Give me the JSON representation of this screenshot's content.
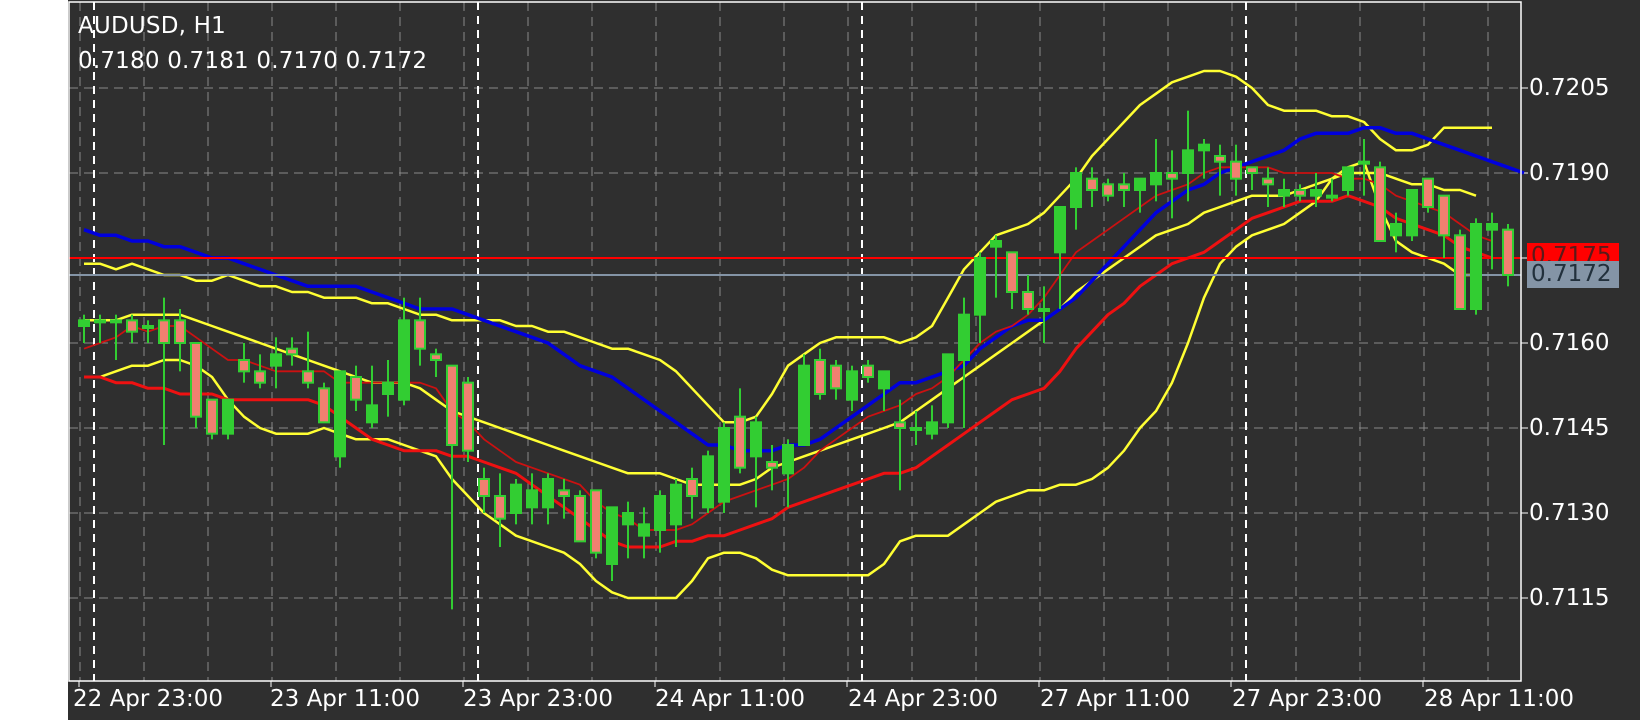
{
  "header": {
    "symbol_timeframe": "AUDUSD, H1",
    "ohlc": "0.7180 0.7181 0.7170 0.7172"
  },
  "price_tags": {
    "ask_line": "0.7175",
    "bid_line": "0.7172"
  },
  "colors": {
    "background": "#2f2f2f",
    "grid": "#8a8a8a",
    "axis": "#ffffff",
    "bull_candle": "#32cd32",
    "bear_candle_body": "#f08070",
    "bollinger": "#ffff33",
    "ma_blue": "#0000dd",
    "ma_red": "#ee1111",
    "ask_line": "#ff0000",
    "bid_line": "#8494a6"
  },
  "chart_data": {
    "type": "candlestick",
    "title": "AUDUSD, H1",
    "xlabel": "",
    "ylabel": "",
    "ylim": [
      0.71,
      0.7214
    ],
    "grid": true,
    "y_ticks": [
      "0.7205",
      "0.7190",
      "0.7160",
      "0.7145",
      "0.7130",
      "0.7115"
    ],
    "x_ticks": [
      "22 Apr 23:00",
      "23 Apr 11:00",
      "23 Apr 23:00",
      "24 Apr 11:00",
      "24 Apr 23:00",
      "27 Apr 11:00",
      "27 Apr 23:00",
      "28 Apr 11:00"
    ],
    "last_ohlc": {
      "open": 0.718,
      "high": 0.7181,
      "low": 0.717,
      "close": 0.7172
    },
    "horizontal_lines": [
      {
        "name": "ask",
        "value": 0.7175,
        "color": "#ff0000"
      },
      {
        "name": "bid",
        "value": 0.7172,
        "color": "#8494a6"
      }
    ],
    "candles": [
      [
        0.7163,
        0.7165,
        0.716,
        0.7164
      ],
      [
        0.7164,
        0.7165,
        0.716,
        0.7164
      ],
      [
        0.7164,
        0.7165,
        0.7157,
        0.7164
      ],
      [
        0.7164,
        0.7165,
        0.716,
        0.7162
      ],
      [
        0.7163,
        0.7164,
        0.716,
        0.7163
      ],
      [
        0.7164,
        0.7168,
        0.7142,
        0.716
      ],
      [
        0.7164,
        0.7166,
        0.7155,
        0.716
      ],
      [
        0.716,
        0.716,
        0.7145,
        0.7147
      ],
      [
        0.715,
        0.715,
        0.7143,
        0.7144
      ],
      [
        0.7144,
        0.715,
        0.7143,
        0.715
      ],
      [
        0.7157,
        0.716,
        0.7153,
        0.7155
      ],
      [
        0.7155,
        0.7158,
        0.7152,
        0.7153
      ],
      [
        0.7156,
        0.7161,
        0.7152,
        0.7158
      ],
      [
        0.7159,
        0.7161,
        0.7156,
        0.7158
      ],
      [
        0.7155,
        0.7162,
        0.7152,
        0.7153
      ],
      [
        0.7152,
        0.7153,
        0.7146,
        0.7146
      ],
      [
        0.714,
        0.7155,
        0.7138,
        0.7155
      ],
      [
        0.7154,
        0.7156,
        0.7148,
        0.715
      ],
      [
        0.7146,
        0.7156,
        0.7145,
        0.7149
      ],
      [
        0.7151,
        0.7157,
        0.7147,
        0.7153
      ],
      [
        0.715,
        0.7168,
        0.7149,
        0.7164
      ],
      [
        0.7164,
        0.7168,
        0.7156,
        0.7159
      ],
      [
        0.7158,
        0.7159,
        0.7154,
        0.7157
      ],
      [
        0.7156,
        0.7156,
        0.7113,
        0.7142
      ],
      [
        0.7153,
        0.7154,
        0.7139,
        0.7141
      ],
      [
        0.7136,
        0.7138,
        0.713,
        0.7133
      ],
      [
        0.7133,
        0.7137,
        0.7124,
        0.7129
      ],
      [
        0.713,
        0.7136,
        0.7128,
        0.7135
      ],
      [
        0.7131,
        0.7137,
        0.7128,
        0.7134
      ],
      [
        0.7131,
        0.7137,
        0.7128,
        0.7136
      ],
      [
        0.7134,
        0.7136,
        0.7129,
        0.7133
      ],
      [
        0.7133,
        0.7134,
        0.7125,
        0.7125
      ],
      [
        0.7134,
        0.7134,
        0.7122,
        0.7123
      ],
      [
        0.7121,
        0.7131,
        0.7118,
        0.7131
      ],
      [
        0.7128,
        0.7132,
        0.7122,
        0.713
      ],
      [
        0.7126,
        0.7131,
        0.7122,
        0.7128
      ],
      [
        0.7127,
        0.7134,
        0.7123,
        0.7133
      ],
      [
        0.7128,
        0.7136,
        0.7124,
        0.7135
      ],
      [
        0.7136,
        0.7138,
        0.7129,
        0.7133
      ],
      [
        0.7131,
        0.7141,
        0.713,
        0.714
      ],
      [
        0.7132,
        0.7146,
        0.713,
        0.7145
      ],
      [
        0.7147,
        0.7152,
        0.7137,
        0.7138
      ],
      [
        0.714,
        0.7147,
        0.7131,
        0.7146
      ],
      [
        0.7139,
        0.7142,
        0.7134,
        0.7138
      ],
      [
        0.7137,
        0.7143,
        0.7131,
        0.7142
      ],
      [
        0.7142,
        0.7158,
        0.7142,
        0.7156
      ],
      [
        0.7157,
        0.7159,
        0.715,
        0.7151
      ],
      [
        0.7156,
        0.7157,
        0.715,
        0.7152
      ],
      [
        0.715,
        0.7156,
        0.7148,
        0.7155
      ],
      [
        0.7156,
        0.7157,
        0.7153,
        0.7154
      ],
      [
        0.7152,
        0.7155,
        0.7148,
        0.7155
      ],
      [
        0.7146,
        0.715,
        0.7134,
        0.7145
      ],
      [
        0.7145,
        0.7148,
        0.7142,
        0.7145
      ],
      [
        0.7144,
        0.7149,
        0.7143,
        0.7146
      ],
      [
        0.7146,
        0.7154,
        0.7145,
        0.7158
      ],
      [
        0.7157,
        0.7168,
        0.7145,
        0.7165
      ],
      [
        0.7165,
        0.7176,
        0.716,
        0.7175
      ],
      [
        0.7177,
        0.7179,
        0.7168,
        0.7178
      ],
      [
        0.7176,
        0.7176,
        0.7166,
        0.7169
      ],
      [
        0.7169,
        0.7172,
        0.7165,
        0.7166
      ],
      [
        0.7166,
        0.717,
        0.716,
        0.7166
      ],
      [
        0.7176,
        0.718,
        0.7166,
        0.7184
      ],
      [
        0.7184,
        0.7191,
        0.718,
        0.719
      ],
      [
        0.7189,
        0.7191,
        0.7184,
        0.7187
      ],
      [
        0.7188,
        0.7189,
        0.7185,
        0.7186
      ],
      [
        0.7188,
        0.719,
        0.7184,
        0.7187
      ],
      [
        0.7187,
        0.7189,
        0.7183,
        0.7189
      ],
      [
        0.7188,
        0.7196,
        0.7185,
        0.719
      ],
      [
        0.719,
        0.7194,
        0.7182,
        0.7189
      ],
      [
        0.719,
        0.7201,
        0.7185,
        0.7194
      ],
      [
        0.7194,
        0.7196,
        0.7189,
        0.7195
      ],
      [
        0.7193,
        0.7195,
        0.7186,
        0.7192
      ],
      [
        0.7192,
        0.7195,
        0.7186,
        0.7189
      ],
      [
        0.7191,
        0.719,
        0.7187,
        0.719
      ],
      [
        0.7189,
        0.7191,
        0.7184,
        0.7188
      ],
      [
        0.7186,
        0.7189,
        0.7184,
        0.7187
      ],
      [
        0.7187,
        0.7188,
        0.7185,
        0.7186
      ],
      [
        0.7186,
        0.719,
        0.7184,
        0.7187
      ],
      [
        0.7186,
        0.7189,
        0.7185,
        0.7186
      ],
      [
        0.7187,
        0.7191,
        0.7186,
        0.7191
      ],
      [
        0.7192,
        0.7196,
        0.7186,
        0.7192
      ],
      [
        0.7191,
        0.7192,
        0.7178,
        0.7178
      ],
      [
        0.7179,
        0.7183,
        0.7176,
        0.7181
      ],
      [
        0.7179,
        0.7187,
        0.7178,
        0.7187
      ],
      [
        0.7189,
        0.7189,
        0.7183,
        0.7184
      ],
      [
        0.7186,
        0.7186,
        0.7175,
        0.7179
      ],
      [
        0.7179,
        0.718,
        0.7166,
        0.7166
      ],
      [
        0.7166,
        0.7182,
        0.7165,
        0.7181
      ],
      [
        0.718,
        0.7183,
        0.7173,
        0.7181
      ],
      [
        0.718,
        0.7181,
        0.717,
        0.7172
      ]
    ],
    "series": [
      {
        "name": "bollinger_upper",
        "color": "#ffff33",
        "values": [
          0.7174,
          0.7174,
          0.7173,
          0.7174,
          0.7173,
          0.7172,
          0.7172,
          0.7171,
          0.7171,
          0.7172,
          0.7171,
          0.717,
          0.717,
          0.7169,
          0.7169,
          0.7168,
          0.7168,
          0.7168,
          0.7167,
          0.7167,
          0.7166,
          0.7165,
          0.7165,
          0.7164,
          0.7164,
          0.7164,
          0.7164,
          0.7163,
          0.7163,
          0.7162,
          0.7162,
          0.7161,
          0.716,
          0.7159,
          0.7159,
          0.7158,
          0.7157,
          0.7155,
          0.7152,
          0.7149,
          0.7146,
          0.7146,
          0.7147,
          0.7151,
          0.7156,
          0.7158,
          0.716,
          0.7161,
          0.7161,
          0.7161,
          0.7161,
          0.716,
          0.7161,
          0.7163,
          0.7168,
          0.7173,
          0.7176,
          0.7179,
          0.718,
          0.7181,
          0.7183,
          0.7186,
          0.7189,
          0.7193,
          0.7196,
          0.7199,
          0.7202,
          0.7204,
          0.7206,
          0.7207,
          0.7208,
          0.7208,
          0.7207,
          0.7205,
          0.7202,
          0.7201,
          0.7201,
          0.7201,
          0.72,
          0.72,
          0.7199,
          0.7196,
          0.7194,
          0.7194,
          0.7195,
          0.7198,
          0.7198,
          0.7198,
          0.7198
        ]
      },
      {
        "name": "bollinger_middle_yellow",
        "color": "#ffff33",
        "values": [
          0.7164,
          0.7164,
          0.7164,
          0.7165,
          0.7165,
          0.7165,
          0.7165,
          0.7164,
          0.7163,
          0.7162,
          0.7161,
          0.716,
          0.7159,
          0.7158,
          0.7157,
          0.7156,
          0.7155,
          0.7154,
          0.7153,
          0.7153,
          0.7153,
          0.7152,
          0.715,
          0.7148,
          0.7147,
          0.7146,
          0.7145,
          0.7144,
          0.7143,
          0.7142,
          0.7141,
          0.714,
          0.7139,
          0.7138,
          0.7137,
          0.7137,
          0.7137,
          0.7136,
          0.7135,
          0.7135,
          0.7135,
          0.7135,
          0.7136,
          0.7138,
          0.7139,
          0.714,
          0.7141,
          0.7142,
          0.7143,
          0.7144,
          0.7145,
          0.7146,
          0.7148,
          0.715,
          0.7152,
          0.7154,
          0.7156,
          0.7158,
          0.716,
          0.7162,
          0.7164,
          0.7166,
          0.7169,
          0.7171,
          0.7173,
          0.7175,
          0.7177,
          0.7179,
          0.718,
          0.7181,
          0.7183,
          0.7184,
          0.7185,
          0.7186,
          0.7186,
          0.7186,
          0.7187,
          0.7188,
          0.7189,
          0.719,
          0.719,
          0.719,
          0.7189,
          0.7188,
          0.7188,
          0.7187,
          0.7187,
          0.7186
        ]
      },
      {
        "name": "bollinger_lower",
        "color": "#ffff33",
        "values": [
          0.7154,
          0.7154,
          0.7155,
          0.7156,
          0.7156,
          0.7157,
          0.7157,
          0.7156,
          0.7154,
          0.715,
          0.7147,
          0.7145,
          0.7144,
          0.7144,
          0.7144,
          0.7145,
          0.7144,
          0.7143,
          0.7143,
          0.7143,
          0.7142,
          0.7141,
          0.714,
          0.7136,
          0.7133,
          0.713,
          0.7128,
          0.7126,
          0.7125,
          0.7124,
          0.7123,
          0.7121,
          0.7118,
          0.7116,
          0.7115,
          0.7115,
          0.7115,
          0.7115,
          0.7118,
          0.7122,
          0.7123,
          0.7123,
          0.7122,
          0.712,
          0.7119,
          0.7119,
          0.7119,
          0.7119,
          0.7119,
          0.7119,
          0.7121,
          0.7125,
          0.7126,
          0.7126,
          0.7126,
          0.7128,
          0.713,
          0.7132,
          0.7133,
          0.7134,
          0.7134,
          0.7135,
          0.7135,
          0.7136,
          0.7138,
          0.7141,
          0.7145,
          0.7148,
          0.7153,
          0.716,
          0.7168,
          0.7174,
          0.7177,
          0.7179,
          0.718,
          0.7181,
          0.7183,
          0.7185,
          0.7189,
          0.7191,
          0.7192,
          0.7184,
          0.7178,
          0.7176,
          0.7175,
          0.7174,
          0.7172,
          0.7172
        ]
      },
      {
        "name": "ma_blue",
        "color": "#0000dd",
        "values": [
          0.718,
          0.7179,
          0.7179,
          0.7178,
          0.7178,
          0.7177,
          0.7177,
          0.7176,
          0.7175,
          0.7175,
          0.7174,
          0.7173,
          0.7172,
          0.7171,
          0.717,
          0.717,
          0.717,
          0.717,
          0.7169,
          0.7168,
          0.7167,
          0.7166,
          0.7166,
          0.7166,
          0.7165,
          0.7164,
          0.7163,
          0.7162,
          0.7161,
          0.716,
          0.7158,
          0.7156,
          0.7155,
          0.7154,
          0.7152,
          0.715,
          0.7148,
          0.7146,
          0.7144,
          0.7142,
          0.7142,
          0.7141,
          0.7141,
          0.7141,
          0.7142,
          0.7142,
          0.7143,
          0.7145,
          0.7147,
          0.7149,
          0.7151,
          0.7153,
          0.7153,
          0.7154,
          0.7155,
          0.7156,
          0.7159,
          0.7161,
          0.7163,
          0.7164,
          0.7164,
          0.7166,
          0.7168,
          0.7171,
          0.7174,
          0.7177,
          0.718,
          0.7183,
          0.7185,
          0.7187,
          0.7188,
          0.719,
          0.7191,
          0.7192,
          0.7193,
          0.7194,
          0.7196,
          0.7197,
          0.7197,
          0.7197,
          0.7198,
          0.7198,
          0.7197,
          0.7197,
          0.7196,
          0.7195,
          0.7194,
          0.7193,
          0.7192,
          0.7191,
          0.719
        ]
      },
      {
        "name": "ma_red_thin",
        "color": "#cc1111",
        "values": [
          0.7159,
          0.716,
          0.7161,
          0.7163,
          0.7162,
          0.7163,
          0.7163,
          0.7161,
          0.7159,
          0.7157,
          0.7157,
          0.7156,
          0.7155,
          0.7155,
          0.7155,
          0.7155,
          0.7153,
          0.7153,
          0.7153,
          0.7153,
          0.7153,
          0.7153,
          0.7152,
          0.7148,
          0.7146,
          0.7143,
          0.7141,
          0.7139,
          0.7138,
          0.7137,
          0.7136,
          0.7135,
          0.7132,
          0.713,
          0.7129,
          0.7127,
          0.7127,
          0.7127,
          0.7128,
          0.713,
          0.7132,
          0.7133,
          0.7134,
          0.7135,
          0.7136,
          0.7138,
          0.7141,
          0.7143,
          0.7145,
          0.7147,
          0.7148,
          0.7149,
          0.7151,
          0.7152,
          0.7154,
          0.7157,
          0.716,
          0.7162,
          0.7163,
          0.7165,
          0.7168,
          0.7172,
          0.7176,
          0.7178,
          0.718,
          0.7182,
          0.7184,
          0.7186,
          0.7187,
          0.7188,
          0.719,
          0.7191,
          0.7191,
          0.7191,
          0.7191,
          0.719,
          0.719,
          0.719,
          0.719,
          0.7189,
          0.7189,
          0.7188,
          0.7186,
          0.7185,
          0.7184,
          0.7183,
          0.7181,
          0.7179,
          0.7178
        ]
      },
      {
        "name": "ma_red_thick",
        "color": "#ee1111",
        "values": [
          0.7154,
          0.7154,
          0.7153,
          0.7153,
          0.7152,
          0.7152,
          0.7151,
          0.7151,
          0.7151,
          0.715,
          0.715,
          0.715,
          0.715,
          0.715,
          0.715,
          0.7149,
          0.7147,
          0.7145,
          0.7143,
          0.7142,
          0.7141,
          0.7141,
          0.7141,
          0.714,
          0.714,
          0.7139,
          0.7138,
          0.7137,
          0.7135,
          0.7133,
          0.7131,
          0.7129,
          0.7127,
          0.7125,
          0.7124,
          0.7124,
          0.7124,
          0.7125,
          0.7125,
          0.7126,
          0.7126,
          0.7127,
          0.7128,
          0.7129,
          0.7131,
          0.7132,
          0.7133,
          0.7134,
          0.7135,
          0.7136,
          0.7137,
          0.7137,
          0.7138,
          0.714,
          0.7142,
          0.7144,
          0.7146,
          0.7148,
          0.715,
          0.7151,
          0.7152,
          0.7155,
          0.7159,
          0.7162,
          0.7165,
          0.7167,
          0.717,
          0.7172,
          0.7174,
          0.7175,
          0.7176,
          0.7178,
          0.718,
          0.7182,
          0.7183,
          0.7184,
          0.7185,
          0.7185,
          0.7185,
          0.7186,
          0.7185,
          0.7184,
          0.7182,
          0.7181,
          0.718,
          0.7179,
          0.7177,
          0.7176,
          0.7175
        ]
      }
    ]
  }
}
